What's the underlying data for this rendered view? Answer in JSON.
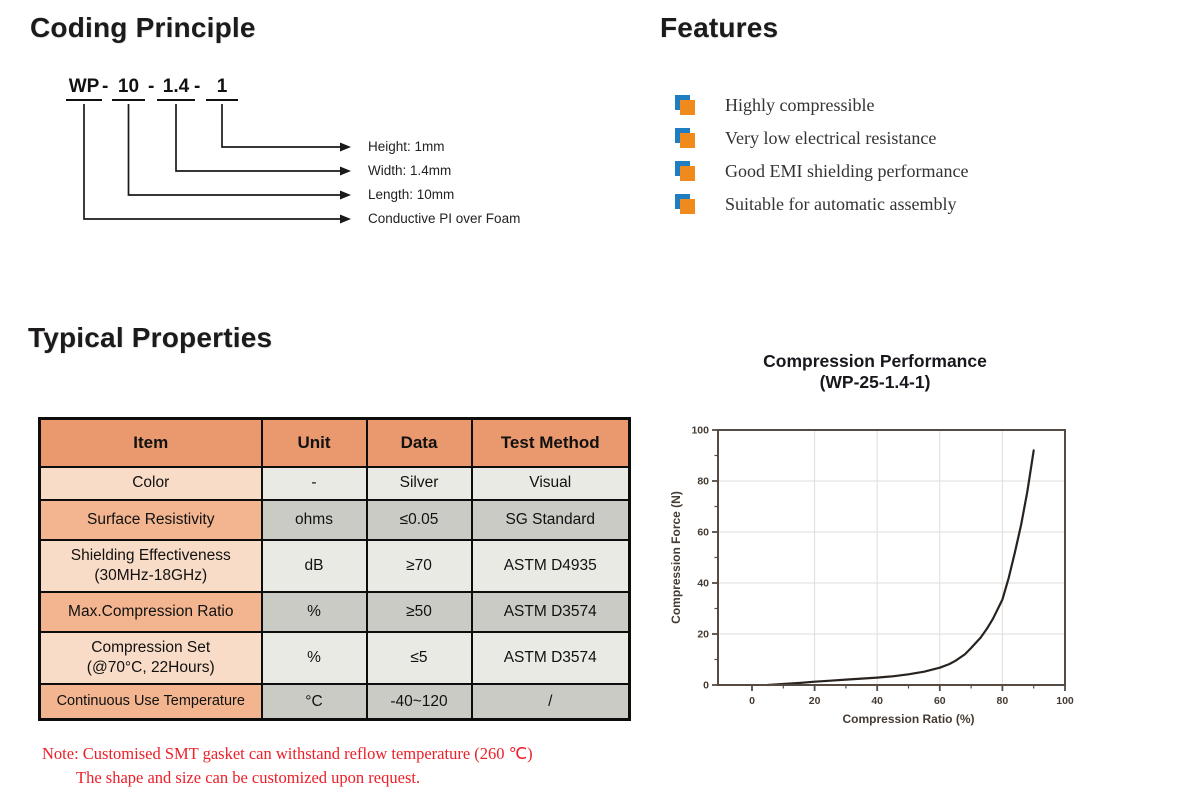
{
  "coding_principle": {
    "title": "Coding Principle",
    "code_segments": [
      "WP",
      "10",
      "1.4",
      "1"
    ],
    "separator": "-",
    "labels": [
      "Height: 1mm",
      "Width: 1.4mm",
      "Length: 10mm",
      "Conductive PI over Foam"
    ]
  },
  "features": {
    "title": "Features",
    "items": [
      "Highly compressible",
      "Very low electrical resistance",
      "Good EMI shielding performance",
      "Suitable for automatic assembly"
    ],
    "bullet_front_color": "#F08A1D",
    "bullet_back_color": "#1F7EC2"
  },
  "typical_properties": {
    "title": "Typical Properties",
    "table": {
      "headers": [
        "Item",
        "Unit",
        "Data",
        "Test Method"
      ],
      "rows": [
        {
          "item": "Color",
          "item2": "",
          "unit": "-",
          "data": "Silver",
          "method": "Visual"
        },
        {
          "item": "Surface Resistivity",
          "item2": "",
          "unit": "ohms",
          "data": "≤0.05",
          "method": "SG Standard"
        },
        {
          "item": "Shielding Effectiveness",
          "item2": "(30MHz-18GHz)",
          "unit": "dB",
          "data": "≥70",
          "method": "ASTM D4935"
        },
        {
          "item": "Max.Compression Ratio",
          "item2": "",
          "unit": "%",
          "data": "≥50",
          "method": "ASTM D3574"
        },
        {
          "item": "Compression Set",
          "item2": "(@70°C, 22Hours)",
          "unit": "%",
          "data": "≤5",
          "method": "ASTM D3574"
        },
        {
          "item": "Continuous Use Temperature",
          "item2": "",
          "unit": "°C",
          "data": "-40~120",
          "method": "/"
        }
      ],
      "colors": {
        "header_bg": "#E9996D",
        "item_light": "#F9DCC7",
        "item_dark": "#F2B58F",
        "cell_light": "#EAEAE5",
        "cell_dark": "#CBCBC6",
        "border": "#0d0d0d"
      }
    },
    "note_line1": "Note: Customised SMT gasket can withstand reflow temperature (260 ℃)",
    "note_line2": "The shape and size can be customized upon request.",
    "note_color": "#EC2029"
  },
  "chart_data": {
    "type": "line",
    "title": "Compression Performance",
    "subtitle": "(WP-25-1.4-1)",
    "xlabel": "Compression Ratio (%)",
    "ylabel": "Compression Force (N)",
    "xlim": [
      -11,
      100
    ],
    "ylim": [
      0,
      100
    ],
    "xticks": [
      0,
      20,
      40,
      60,
      80,
      100
    ],
    "yticks": [
      0,
      20,
      40,
      60,
      80,
      100
    ],
    "xminor": [
      10,
      30,
      50,
      70,
      90
    ],
    "yminor": [
      10,
      30,
      50,
      70,
      90
    ],
    "grid": true,
    "series": [
      {
        "name": "WP-25-1.4-1",
        "points": [
          [
            5,
            0
          ],
          [
            10,
            0.4
          ],
          [
            15,
            0.8
          ],
          [
            20,
            1.3
          ],
          [
            25,
            1.7
          ],
          [
            30,
            2.1
          ],
          [
            35,
            2.5
          ],
          [
            40,
            2.9
          ],
          [
            45,
            3.4
          ],
          [
            50,
            4.2
          ],
          [
            55,
            5.2
          ],
          [
            60,
            6.8
          ],
          [
            63,
            8.2
          ],
          [
            65,
            9.5
          ],
          [
            68,
            12
          ],
          [
            70,
            14.5
          ],
          [
            73,
            18.5
          ],
          [
            75,
            22
          ],
          [
            77,
            26
          ],
          [
            79,
            31
          ],
          [
            80,
            33.5
          ],
          [
            82,
            42
          ],
          [
            84,
            52
          ],
          [
            86,
            63
          ],
          [
            88,
            76
          ],
          [
            90,
            92
          ]
        ]
      }
    ],
    "colors": {
      "axis": "#564B43",
      "grid": "#E2DDD8",
      "curve": "#292320",
      "tick_text": "#453B33"
    }
  }
}
